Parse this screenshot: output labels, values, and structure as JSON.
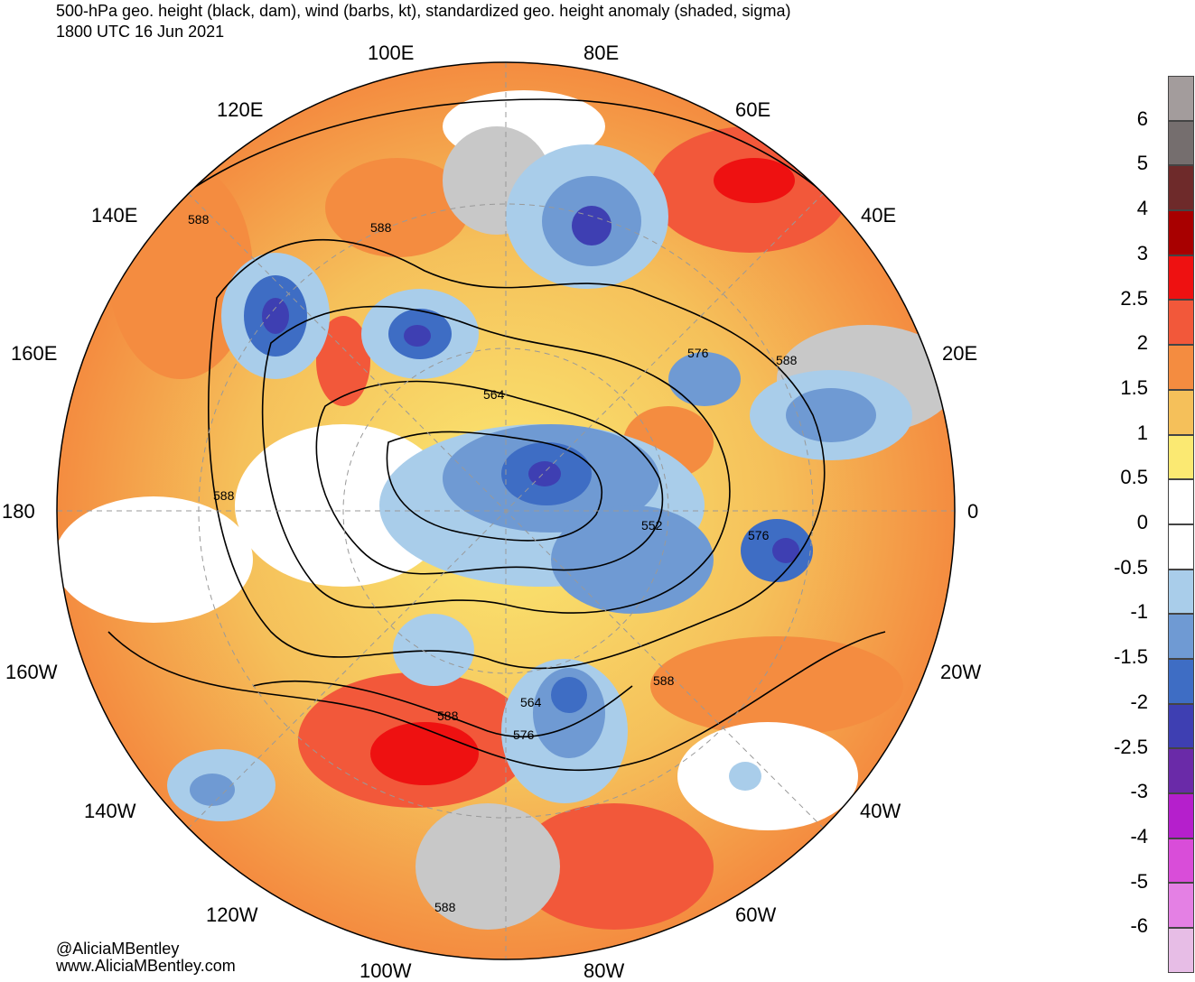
{
  "title": {
    "line1": "500-hPa geo. height (black, dam), wind (barbs, kt), standardized geo. height anomaly (shaded, sigma)",
    "line2": "1800 UTC 16 Jun 2021"
  },
  "credits": {
    "handle": "@AliciaMBentley",
    "site": "www.AliciaMBentley.com"
  },
  "longitude_labels": [
    "100E",
    "80E",
    "120E",
    "60E",
    "140E",
    "40E",
    "160E",
    "20E",
    "180",
    "0",
    "160W",
    "20W",
    "140W",
    "40W",
    "120W",
    "60W",
    "100W",
    "80W"
  ],
  "contour_labels": [
    "588",
    "588",
    "588",
    "576",
    "588",
    "564",
    "552",
    "576",
    "588",
    "564",
    "588",
    "576",
    "588"
  ],
  "colorbar": {
    "labels": [
      "6",
      "5",
      "4",
      "3",
      "2.5",
      "2",
      "1.5",
      "1",
      "0.5",
      "0",
      "-0.5",
      "-1",
      "-1.5",
      "-2",
      "-2.5",
      "-3",
      "-4",
      "-5",
      "-6"
    ],
    "colors": [
      "#a39c9c",
      "#756e6e",
      "#6e2a2a",
      "#a80000",
      "#ee1111",
      "#f2583a",
      "#f48c40",
      "#f5c05a",
      "#fbe972",
      "#ffffff",
      "#ffffff",
      "#a9cdea",
      "#6f9ad3",
      "#3e6dc4",
      "#3e3fb2",
      "#6a2aa8",
      "#b51fcc",
      "#d94dd9",
      "#e480e4",
      "#e7bde6"
    ]
  },
  "colors": {
    "land_outline": "#555555",
    "contour": "#000000",
    "grid": "#999999",
    "missing": "#c8c8c8"
  }
}
